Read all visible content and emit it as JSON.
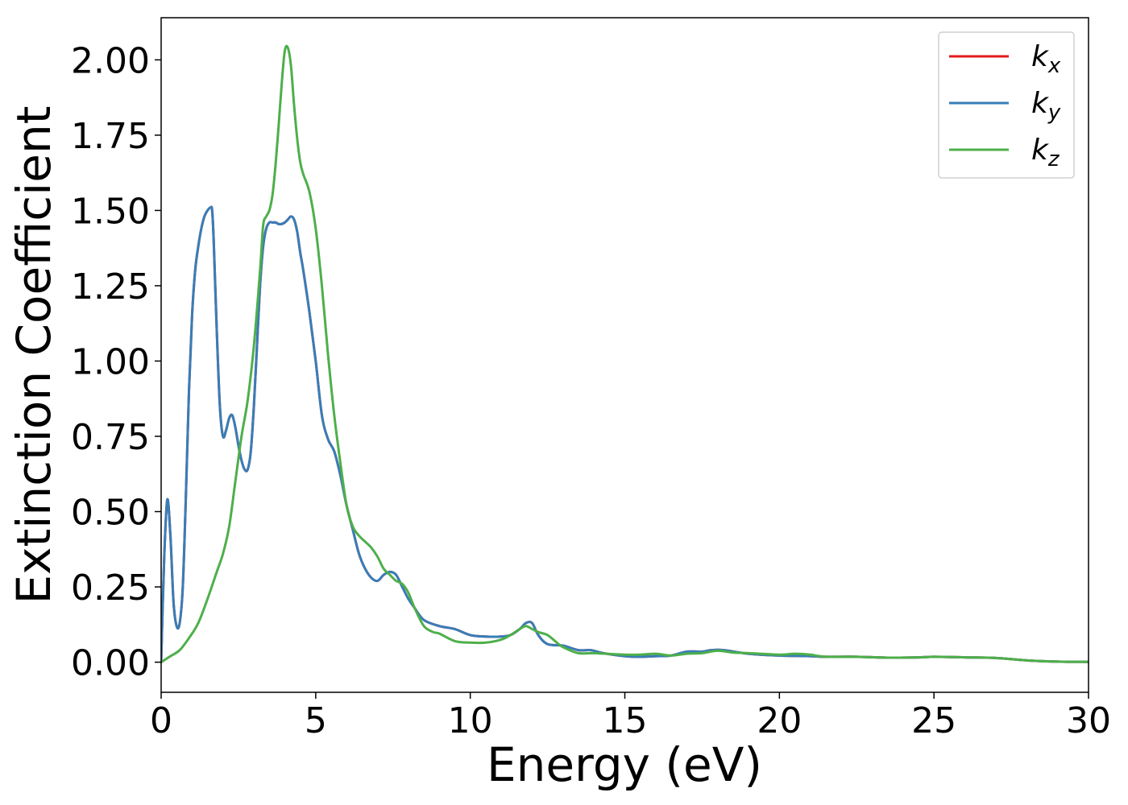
{
  "chart_data": {
    "type": "line",
    "title": "",
    "xlabel": "Energy (eV)",
    "ylabel": "Extinction Coefficient",
    "xlim": [
      0,
      30
    ],
    "ylim": [
      -0.1,
      2.14
    ],
    "xticks": [
      {
        "value": 0,
        "label": "0"
      },
      {
        "value": 5,
        "label": "5"
      },
      {
        "value": 10,
        "label": "10"
      },
      {
        "value": 15,
        "label": "15"
      },
      {
        "value": 20,
        "label": "20"
      },
      {
        "value": 25,
        "label": "25"
      },
      {
        "value": 30,
        "label": "30"
      }
    ],
    "yticks": [
      {
        "value": 0.0,
        "label": "0.00"
      },
      {
        "value": 0.25,
        "label": "0.25"
      },
      {
        "value": 0.5,
        "label": "0.50"
      },
      {
        "value": 0.75,
        "label": "0.75"
      },
      {
        "value": 1.0,
        "label": "1.00"
      },
      {
        "value": 1.25,
        "label": "1.25"
      },
      {
        "value": 1.5,
        "label": "1.50"
      },
      {
        "value": 1.75,
        "label": "1.75"
      },
      {
        "value": 2.0,
        "label": "2.00"
      }
    ],
    "grid": false,
    "legend_position": "top-right",
    "series": [
      {
        "name": "kx",
        "label_main": "k",
        "label_sub": "x",
        "color": "#e41a1c",
        "x": [
          0,
          0.1,
          0.2,
          0.3,
          0.4,
          0.5,
          0.6,
          0.7,
          0.8,
          0.9,
          1.0,
          1.1,
          1.2,
          1.3,
          1.4,
          1.5,
          1.6,
          1.65,
          1.7,
          1.8,
          1.9,
          2.0,
          2.1,
          2.2,
          2.3,
          2.4,
          2.5,
          2.6,
          2.7,
          2.8,
          2.9,
          3.0,
          3.1,
          3.2,
          3.3,
          3.4,
          3.5,
          3.6,
          3.7,
          3.8,
          3.9,
          4.0,
          4.1,
          4.2,
          4.3,
          4.4,
          4.5,
          4.6,
          4.8,
          5.0,
          5.2,
          5.4,
          5.6,
          5.8,
          6.0,
          6.2,
          6.4,
          6.6,
          6.8,
          7.0,
          7.2,
          7.4,
          7.6,
          7.8,
          8.0,
          8.2,
          8.5,
          9.0,
          9.5,
          10.0,
          10.5,
          11.0,
          11.3,
          11.6,
          11.8,
          12.0,
          12.2,
          12.5,
          13.0,
          13.5,
          13.9,
          14.3,
          15.0,
          15.5,
          16.0,
          16.5,
          17.0,
          17.5,
          17.8,
          18.2,
          19.0,
          20.0,
          21.0,
          21.5,
          22.5,
          23.5,
          24.5,
          25.0,
          26.0,
          27.0,
          28.0,
          29.0,
          30.0
        ],
        "y": [
          0.0,
          0.35,
          0.54,
          0.42,
          0.2,
          0.12,
          0.13,
          0.25,
          0.55,
          0.9,
          1.15,
          1.3,
          1.38,
          1.44,
          1.48,
          1.5,
          1.51,
          1.5,
          1.4,
          1.1,
          0.85,
          0.75,
          0.77,
          0.81,
          0.82,
          0.78,
          0.72,
          0.67,
          0.64,
          0.64,
          0.7,
          0.85,
          1.05,
          1.25,
          1.38,
          1.44,
          1.46,
          1.46,
          1.46,
          1.455,
          1.455,
          1.46,
          1.47,
          1.48,
          1.47,
          1.43,
          1.36,
          1.3,
          1.16,
          1.0,
          0.82,
          0.74,
          0.7,
          0.62,
          0.52,
          0.44,
          0.36,
          0.31,
          0.28,
          0.27,
          0.29,
          0.3,
          0.29,
          0.25,
          0.21,
          0.18,
          0.14,
          0.12,
          0.11,
          0.09,
          0.085,
          0.085,
          0.09,
          0.11,
          0.13,
          0.13,
          0.09,
          0.06,
          0.055,
          0.04,
          0.04,
          0.03,
          0.02,
          0.018,
          0.02,
          0.022,
          0.035,
          0.035,
          0.04,
          0.04,
          0.028,
          0.022,
          0.02,
          0.018,
          0.018,
          0.015,
          0.016,
          0.018,
          0.016,
          0.014,
          0.006,
          0.002,
          0.001
        ]
      },
      {
        "name": "ky",
        "label_main": "k",
        "label_sub": "y",
        "color": "#377eb8",
        "x": [
          0,
          0.1,
          0.2,
          0.3,
          0.4,
          0.5,
          0.6,
          0.7,
          0.8,
          0.9,
          1.0,
          1.1,
          1.2,
          1.3,
          1.4,
          1.5,
          1.6,
          1.65,
          1.7,
          1.8,
          1.9,
          2.0,
          2.1,
          2.2,
          2.3,
          2.4,
          2.5,
          2.6,
          2.7,
          2.8,
          2.9,
          3.0,
          3.1,
          3.2,
          3.3,
          3.4,
          3.5,
          3.6,
          3.7,
          3.8,
          3.9,
          4.0,
          4.1,
          4.2,
          4.3,
          4.4,
          4.5,
          4.6,
          4.8,
          5.0,
          5.2,
          5.4,
          5.6,
          5.8,
          6.0,
          6.2,
          6.4,
          6.6,
          6.8,
          7.0,
          7.2,
          7.4,
          7.6,
          7.8,
          8.0,
          8.2,
          8.5,
          9.0,
          9.5,
          10.0,
          10.5,
          11.0,
          11.3,
          11.6,
          11.8,
          12.0,
          12.2,
          12.5,
          13.0,
          13.5,
          13.9,
          14.3,
          15.0,
          15.5,
          16.0,
          16.5,
          17.0,
          17.5,
          17.8,
          18.2,
          19.0,
          20.0,
          21.0,
          21.5,
          22.5,
          23.5,
          24.5,
          25.0,
          26.0,
          27.0,
          28.0,
          29.0,
          30.0
        ],
        "y": [
          0.0,
          0.35,
          0.54,
          0.42,
          0.2,
          0.12,
          0.13,
          0.25,
          0.55,
          0.9,
          1.15,
          1.3,
          1.38,
          1.44,
          1.48,
          1.5,
          1.51,
          1.5,
          1.4,
          1.1,
          0.85,
          0.75,
          0.77,
          0.81,
          0.82,
          0.78,
          0.72,
          0.67,
          0.64,
          0.64,
          0.7,
          0.85,
          1.05,
          1.25,
          1.38,
          1.44,
          1.46,
          1.46,
          1.46,
          1.455,
          1.455,
          1.46,
          1.47,
          1.48,
          1.47,
          1.43,
          1.36,
          1.3,
          1.16,
          1.0,
          0.82,
          0.74,
          0.7,
          0.62,
          0.52,
          0.44,
          0.36,
          0.31,
          0.28,
          0.27,
          0.29,
          0.3,
          0.29,
          0.25,
          0.21,
          0.18,
          0.14,
          0.12,
          0.11,
          0.09,
          0.085,
          0.085,
          0.09,
          0.11,
          0.13,
          0.13,
          0.09,
          0.06,
          0.055,
          0.04,
          0.04,
          0.03,
          0.02,
          0.018,
          0.02,
          0.022,
          0.035,
          0.035,
          0.04,
          0.04,
          0.028,
          0.022,
          0.02,
          0.018,
          0.018,
          0.015,
          0.016,
          0.018,
          0.016,
          0.014,
          0.006,
          0.002,
          0.001
        ]
      },
      {
        "name": "kz",
        "label_main": "k",
        "label_sub": "z",
        "color": "#4daf4a",
        "x": [
          0,
          0.3,
          0.6,
          0.9,
          1.2,
          1.5,
          1.8,
          2.0,
          2.2,
          2.4,
          2.6,
          2.8,
          3.0,
          3.2,
          3.3,
          3.4,
          3.5,
          3.6,
          3.7,
          3.8,
          3.9,
          4.0,
          4.1,
          4.2,
          4.3,
          4.4,
          4.5,
          4.6,
          4.8,
          5.0,
          5.2,
          5.4,
          5.6,
          5.8,
          6.0,
          6.2,
          6.4,
          6.6,
          6.8,
          7.0,
          7.2,
          7.4,
          7.6,
          7.8,
          8.0,
          8.2,
          8.5,
          8.8,
          9.0,
          9.5,
          10.0,
          10.5,
          11.0,
          11.3,
          11.6,
          11.8,
          12.0,
          12.2,
          12.5,
          12.8,
          13.0,
          13.5,
          14.0,
          15.0,
          15.5,
          16.0,
          16.5,
          17.0,
          17.5,
          18.0,
          18.5,
          19.0,
          20.0,
          20.5,
          21.0,
          21.5,
          22.5,
          23.5,
          24.5,
          25.0,
          26.0,
          27.0,
          28.0,
          29.0,
          30.0
        ],
        "y": [
          0.0,
          0.02,
          0.04,
          0.08,
          0.13,
          0.21,
          0.3,
          0.36,
          0.45,
          0.6,
          0.75,
          0.87,
          1.05,
          1.3,
          1.45,
          1.48,
          1.5,
          1.55,
          1.65,
          1.78,
          1.92,
          2.03,
          2.04,
          1.98,
          1.85,
          1.74,
          1.66,
          1.62,
          1.56,
          1.44,
          1.25,
          1.02,
          0.82,
          0.66,
          0.52,
          0.45,
          0.42,
          0.4,
          0.38,
          0.35,
          0.31,
          0.29,
          0.27,
          0.26,
          0.23,
          0.18,
          0.12,
          0.1,
          0.095,
          0.07,
          0.065,
          0.065,
          0.075,
          0.09,
          0.11,
          0.12,
          0.11,
          0.1,
          0.09,
          0.065,
          0.05,
          0.03,
          0.03,
          0.025,
          0.025,
          0.028,
          0.022,
          0.028,
          0.03,
          0.038,
          0.032,
          0.03,
          0.025,
          0.028,
          0.025,
          0.018,
          0.018,
          0.015,
          0.016,
          0.018,
          0.016,
          0.014,
          0.006,
          0.002,
          0.001
        ]
      }
    ]
  }
}
